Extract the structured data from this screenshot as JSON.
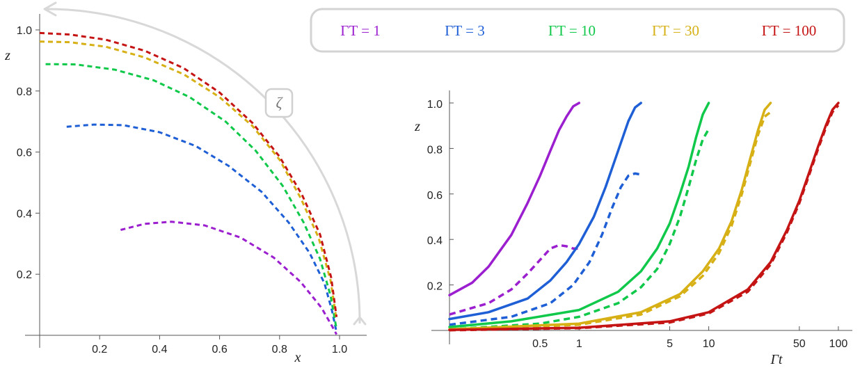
{
  "legend": {
    "entries": [
      {
        "label": "ΓT = 1",
        "color": "#9b1fcf"
      },
      {
        "label": "ΓT = 3",
        "color": "#1f5fd6"
      },
      {
        "label": "ΓT = 10",
        "color": "#10c84a"
      },
      {
        "label": "ΓT = 30",
        "color": "#d6b014"
      },
      {
        "label": "ΓT = 100",
        "color": "#c51414"
      }
    ]
  },
  "arrow": {
    "label": "ζ",
    "color": "#d0d0d0"
  },
  "chart_data": [
    {
      "type": "line",
      "xlabel": "x",
      "ylabel": "z",
      "xlim": [
        0,
        1.08
      ],
      "ylim": [
        0,
        1.04
      ],
      "xticks": [
        {
          "value": 0.2,
          "label": "0.2"
        },
        {
          "value": 0.4,
          "label": "0.4"
        },
        {
          "value": 0.6,
          "label": "0.6"
        },
        {
          "value": 0.8,
          "label": "0.8"
        },
        {
          "value": 1.0,
          "label": "1.0"
        }
      ],
      "yticks": [
        {
          "value": 0.2,
          "label": "0.2"
        },
        {
          "value": 0.4,
          "label": "0.4"
        },
        {
          "value": 0.6,
          "label": "0.6"
        },
        {
          "value": 0.8,
          "label": "0.8"
        },
        {
          "value": 1.0,
          "label": "1.0"
        }
      ],
      "series": [
        {
          "name": "ΓT = 1",
          "color": "#9b1fcf",
          "dashed": true,
          "points": [
            [
              0.27,
              0.345
            ],
            [
              0.35,
              0.365
            ],
            [
              0.44,
              0.372
            ],
            [
              0.55,
              0.36
            ],
            [
              0.67,
              0.32
            ],
            [
              0.78,
              0.255
            ],
            [
              0.87,
              0.175
            ],
            [
              0.94,
              0.09
            ],
            [
              0.975,
              0.03
            ],
            [
              0.99,
              0.003
            ]
          ]
        },
        {
          "name": "ΓT = 3",
          "color": "#1f5fd6",
          "dashed": true,
          "points": [
            [
              0.09,
              0.683
            ],
            [
              0.18,
              0.69
            ],
            [
              0.28,
              0.688
            ],
            [
              0.4,
              0.665
            ],
            [
              0.52,
              0.62
            ],
            [
              0.63,
              0.555
            ],
            [
              0.74,
              0.47
            ],
            [
              0.83,
              0.37
            ],
            [
              0.9,
              0.27
            ],
            [
              0.95,
              0.17
            ],
            [
              0.975,
              0.08
            ],
            [
              0.99,
              0.01
            ]
          ]
        },
        {
          "name": "ΓT = 10",
          "color": "#10c84a",
          "dashed": true,
          "points": [
            [
              0.02,
              0.888
            ],
            [
              0.12,
              0.887
            ],
            [
              0.25,
              0.87
            ],
            [
              0.38,
              0.835
            ],
            [
              0.5,
              0.78
            ],
            [
              0.62,
              0.7
            ],
            [
              0.72,
              0.605
            ],
            [
              0.81,
              0.49
            ],
            [
              0.88,
              0.37
            ],
            [
              0.935,
              0.25
            ],
            [
              0.97,
              0.13
            ],
            [
              0.99,
              0.02
            ]
          ]
        },
        {
          "name": "ΓT = 30",
          "color": "#d6b014",
          "dashed": true,
          "points": [
            [
              0.0,
              0.962
            ],
            [
              0.1,
              0.96
            ],
            [
              0.22,
              0.945
            ],
            [
              0.35,
              0.91
            ],
            [
              0.48,
              0.855
            ],
            [
              0.6,
              0.78
            ],
            [
              0.71,
              0.685
            ],
            [
              0.8,
              0.575
            ],
            [
              0.87,
              0.45
            ],
            [
              0.93,
              0.32
            ],
            [
              0.97,
              0.18
            ],
            [
              0.99,
              0.05
            ]
          ]
        },
        {
          "name": "ΓT = 100",
          "color": "#c51414",
          "dashed": true,
          "points": [
            [
              0.0,
              0.99
            ],
            [
              0.1,
              0.985
            ],
            [
              0.22,
              0.968
            ],
            [
              0.35,
              0.932
            ],
            [
              0.48,
              0.875
            ],
            [
              0.6,
              0.795
            ],
            [
              0.71,
              0.695
            ],
            [
              0.8,
              0.585
            ],
            [
              0.875,
              0.46
            ],
            [
              0.935,
              0.33
            ],
            [
              0.972,
              0.19
            ],
            [
              0.99,
              0.06
            ]
          ]
        }
      ]
    },
    {
      "type": "line",
      "xlabel": "Γt",
      "ylabel": "z",
      "xscale": "log",
      "xlim": [
        0.1,
        110
      ],
      "ylim": [
        0,
        1.05
      ],
      "xticks": [
        {
          "value": 0.5,
          "label": "0.5"
        },
        {
          "value": 1,
          "label": "1"
        },
        {
          "value": 5,
          "label": "5"
        },
        {
          "value": 10,
          "label": "10"
        },
        {
          "value": 50,
          "label": "50"
        },
        {
          "value": 100,
          "label": "100"
        }
      ],
      "yticks": [
        {
          "value": 0.2,
          "label": "0.2"
        },
        {
          "value": 0.4,
          "label": "0.4"
        },
        {
          "value": 0.6,
          "label": "0.6"
        },
        {
          "value": 0.8,
          "label": "0.8"
        },
        {
          "value": 1.0,
          "label": "1.0"
        }
      ],
      "series": [
        {
          "name": "ΓT = 1",
          "color": "#9b1fcf",
          "dashed": false,
          "points": [
            [
              0.1,
              0.155
            ],
            [
              0.15,
              0.21
            ],
            [
              0.2,
              0.28
            ],
            [
              0.3,
              0.42
            ],
            [
              0.4,
              0.56
            ],
            [
              0.5,
              0.68
            ],
            [
              0.6,
              0.79
            ],
            [
              0.7,
              0.88
            ],
            [
              0.8,
              0.94
            ],
            [
              0.9,
              0.985
            ],
            [
              1.0,
              1.0
            ]
          ]
        },
        {
          "name": "ΓT = 1",
          "color": "#9b1fcf",
          "dashed": true,
          "points": [
            [
              0.1,
              0.07
            ],
            [
              0.2,
              0.12
            ],
            [
              0.3,
              0.18
            ],
            [
              0.4,
              0.25
            ],
            [
              0.5,
              0.31
            ],
            [
              0.6,
              0.36
            ],
            [
              0.7,
              0.375
            ],
            [
              0.8,
              0.37
            ],
            [
              0.9,
              0.36
            ],
            [
              1.0,
              0.36
            ]
          ]
        },
        {
          "name": "ΓT = 3",
          "color": "#1f5fd6",
          "dashed": false,
          "points": [
            [
              0.1,
              0.05
            ],
            [
              0.2,
              0.08
            ],
            [
              0.4,
              0.14
            ],
            [
              0.6,
              0.22
            ],
            [
              0.8,
              0.3
            ],
            [
              1.0,
              0.38
            ],
            [
              1.3,
              0.5
            ],
            [
              1.6,
              0.63
            ],
            [
              2.0,
              0.79
            ],
            [
              2.4,
              0.92
            ],
            [
              2.7,
              0.98
            ],
            [
              3.0,
              1.0
            ]
          ]
        },
        {
          "name": "ΓT = 3",
          "color": "#1f5fd6",
          "dashed": true,
          "points": [
            [
              0.1,
              0.025
            ],
            [
              0.3,
              0.06
            ],
            [
              0.6,
              0.12
            ],
            [
              0.9,
              0.2
            ],
            [
              1.2,
              0.3
            ],
            [
              1.5,
              0.42
            ],
            [
              1.8,
              0.54
            ],
            [
              2.1,
              0.63
            ],
            [
              2.4,
              0.68
            ],
            [
              2.7,
              0.69
            ],
            [
              3.0,
              0.685
            ]
          ]
        },
        {
          "name": "ΓT = 10",
          "color": "#10c84a",
          "dashed": false,
          "points": [
            [
              0.1,
              0.015
            ],
            [
              0.3,
              0.04
            ],
            [
              1.0,
              0.09
            ],
            [
              2.0,
              0.17
            ],
            [
              3.0,
              0.26
            ],
            [
              4.0,
              0.36
            ],
            [
              5.0,
              0.47
            ],
            [
              6.0,
              0.6
            ],
            [
              7.0,
              0.72
            ],
            [
              8.0,
              0.85
            ],
            [
              9.0,
              0.95
            ],
            [
              10.0,
              1.0
            ]
          ]
        },
        {
          "name": "ΓT = 10",
          "color": "#10c84a",
          "dashed": true,
          "points": [
            [
              0.1,
              0.005
            ],
            [
              0.5,
              0.03
            ],
            [
              1.0,
              0.06
            ],
            [
              2.0,
              0.12
            ],
            [
              3.0,
              0.19
            ],
            [
              4.0,
              0.27
            ],
            [
              5.0,
              0.38
            ],
            [
              6.0,
              0.5
            ],
            [
              7.0,
              0.63
            ],
            [
              8.0,
              0.75
            ],
            [
              9.0,
              0.84
            ],
            [
              10.0,
              0.885
            ]
          ]
        },
        {
          "name": "ΓT = 30",
          "color": "#d6b014",
          "dashed": false,
          "points": [
            [
              0.1,
              0.005
            ],
            [
              1.0,
              0.03
            ],
            [
              3.0,
              0.08
            ],
            [
              6.0,
              0.16
            ],
            [
              9.0,
              0.26
            ],
            [
              12.0,
              0.36
            ],
            [
              15.0,
              0.48
            ],
            [
              18.0,
              0.62
            ],
            [
              21.0,
              0.76
            ],
            [
              24.0,
              0.88
            ],
            [
              27.0,
              0.97
            ],
            [
              30.0,
              1.0
            ]
          ]
        },
        {
          "name": "ΓT = 30",
          "color": "#d6b014",
          "dashed": true,
          "points": [
            [
              0.1,
              0.002
            ],
            [
              1.0,
              0.025
            ],
            [
              3.0,
              0.07
            ],
            [
              6.0,
              0.15
            ],
            [
              9.0,
              0.24
            ],
            [
              12.0,
              0.34
            ],
            [
              15.0,
              0.46
            ],
            [
              18.0,
              0.6
            ],
            [
              21.0,
              0.74
            ],
            [
              24.0,
              0.86
            ],
            [
              27.0,
              0.94
            ],
            [
              30.0,
              0.96
            ]
          ]
        },
        {
          "name": "ΓT = 100",
          "color": "#c51414",
          "dashed": false,
          "points": [
            [
              0.1,
              0.002
            ],
            [
              1.0,
              0.012
            ],
            [
              5.0,
              0.04
            ],
            [
              10.0,
              0.08
            ],
            [
              20.0,
              0.18
            ],
            [
              30.0,
              0.3
            ],
            [
              40.0,
              0.44
            ],
            [
              50.0,
              0.57
            ],
            [
              60.0,
              0.7
            ],
            [
              70.0,
              0.81
            ],
            [
              80.0,
              0.9
            ],
            [
              90.0,
              0.97
            ],
            [
              100.0,
              1.0
            ]
          ]
        },
        {
          "name": "ΓT = 100",
          "color": "#c51414",
          "dashed": true,
          "points": [
            [
              0.1,
              0.001
            ],
            [
              1.0,
              0.01
            ],
            [
              5.0,
              0.035
            ],
            [
              10.0,
              0.075
            ],
            [
              20.0,
              0.17
            ],
            [
              30.0,
              0.29
            ],
            [
              40.0,
              0.43
            ],
            [
              50.0,
              0.56
            ],
            [
              60.0,
              0.69
            ],
            [
              70.0,
              0.8
            ],
            [
              80.0,
              0.89
            ],
            [
              90.0,
              0.96
            ],
            [
              100.0,
              0.99
            ]
          ]
        }
      ]
    }
  ]
}
